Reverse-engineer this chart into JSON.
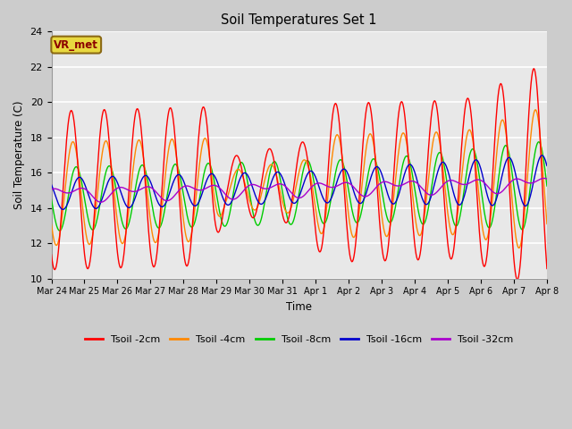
{
  "title": "Soil Temperatures Set 1",
  "xlabel": "Time",
  "ylabel": "Soil Temperature (C)",
  "ylim": [
    10,
    24
  ],
  "yticks": [
    10,
    12,
    14,
    16,
    18,
    20,
    22,
    24
  ],
  "fig_facecolor": "#cccccc",
  "ax_facecolor": "#e8e8e8",
  "grid_color": "#ffffff",
  "annotation_text": "VR_met",
  "annotation_color": "#8B0000",
  "annotation_bg": "#e8d840",
  "annotation_edge": "#8B6914",
  "line_colors": {
    "2cm": "#ff0000",
    "4cm": "#ff8800",
    "8cm": "#00cc00",
    "16cm": "#0000cc",
    "32cm": "#aa00cc"
  },
  "legend_labels": [
    "Tsoil -2cm",
    "Tsoil -4cm",
    "Tsoil -8cm",
    "Tsoil -16cm",
    "Tsoil -32cm"
  ],
  "x_tick_labels": [
    "Mar 24",
    "Mar 25",
    "Mar 26",
    "Mar 27",
    "Mar 28",
    "Mar 29",
    "Mar 30",
    "Mar 31",
    "Apr 1",
    "Apr 2",
    "Apr 3",
    "Apr 4",
    "Apr 5",
    "Apr 6",
    "Apr 7",
    "Apr 8"
  ],
  "num_days": 15,
  "ppd": 48
}
